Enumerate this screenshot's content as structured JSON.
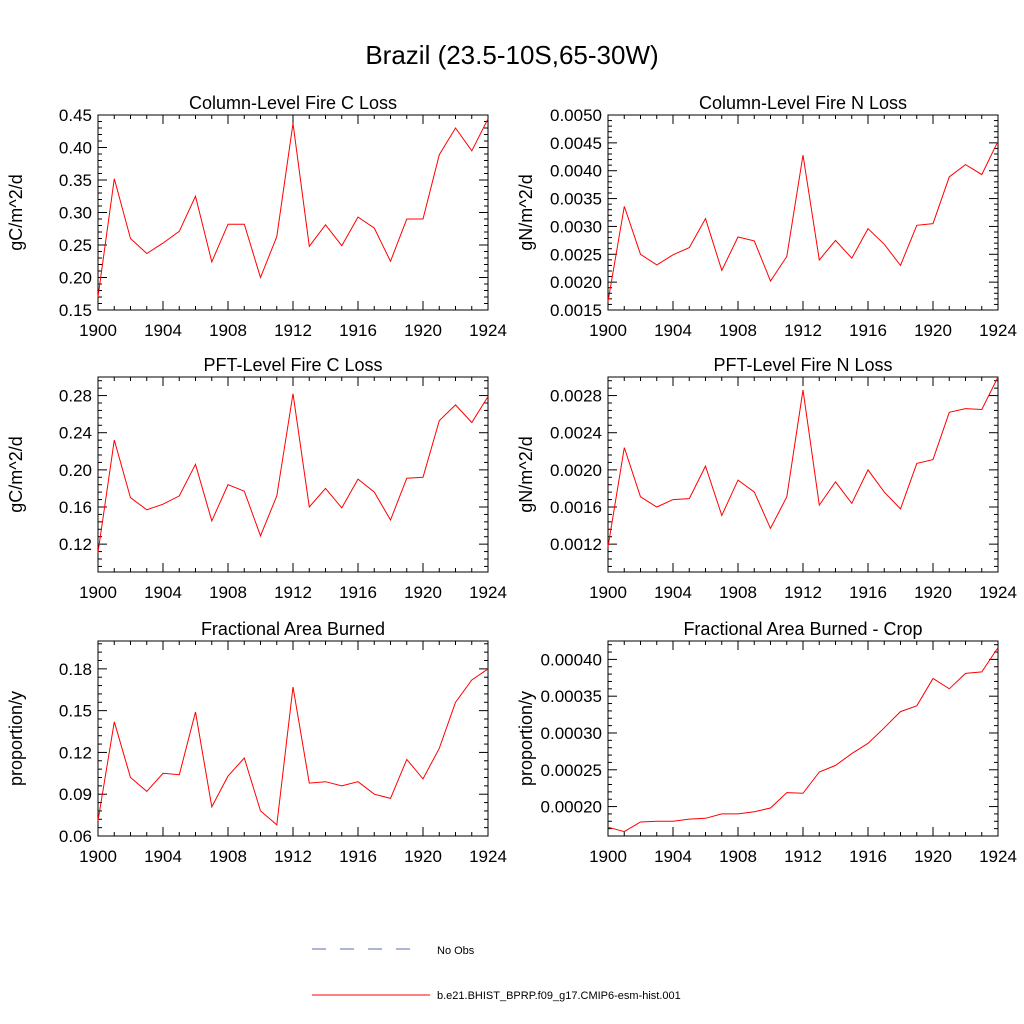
{
  "figure": {
    "title": "Brazil (23.5-10S,65-30W)"
  },
  "legend": {
    "obs_label": "No Obs",
    "obs_color": "#5a6ea8",
    "model_label": "b.e21.BHIST_BPRP.f09_g17.CMIP6-esm-hist.001",
    "model_color": "#ff0000"
  },
  "chart_data": [
    {
      "type": "line",
      "title": "Column-Level Fire C Loss",
      "xlabel": "",
      "ylabel": "gC/m^2/d",
      "xlim": [
        1900,
        1924
      ],
      "ylim": [
        0.15,
        0.45
      ],
      "xticks": [
        1900,
        1904,
        1908,
        1912,
        1916,
        1920,
        1924
      ],
      "xtick_labels": [
        "1900",
        "1904",
        "1908",
        "1912",
        "1916",
        "1920",
        "1924"
      ],
      "yticks": [
        0.15,
        0.2,
        0.25,
        0.3,
        0.35,
        0.4,
        0.45
      ],
      "ytick_labels": [
        "0.15",
        "0.20",
        "0.25",
        "0.30",
        "0.35",
        "0.40",
        "0.45"
      ],
      "series": [
        {
          "name": "b.e21.BHIST_BPRP.f09_g17.CMIP6-esm-hist.001",
          "color": "#ff0000",
          "x": [
            1900,
            1901,
            1902,
            1903,
            1904,
            1905,
            1906,
            1907,
            1908,
            1909,
            1910,
            1911,
            1912,
            1913,
            1914,
            1915,
            1916,
            1917,
            1918,
            1919,
            1920,
            1921,
            1922,
            1923,
            1924
          ],
          "values": [
            0.17,
            0.352,
            0.26,
            0.237,
            0.253,
            0.271,
            0.325,
            0.224,
            0.282,
            0.282,
            0.2,
            0.263,
            0.437,
            0.248,
            0.281,
            0.249,
            0.293,
            0.276,
            0.225,
            0.29,
            0.29,
            0.389,
            0.43,
            0.395,
            0.444
          ]
        }
      ]
    },
    {
      "type": "line",
      "title": "Column-Level Fire N Loss",
      "xlabel": "",
      "ylabel": "gN/m^2/d",
      "xlim": [
        1900,
        1924
      ],
      "ylim": [
        0.0015,
        0.005
      ],
      "xticks": [
        1900,
        1904,
        1908,
        1912,
        1916,
        1920,
        1924
      ],
      "xtick_labels": [
        "1900",
        "1904",
        "1908",
        "1912",
        "1916",
        "1920",
        "1924"
      ],
      "yticks": [
        0.0015,
        0.002,
        0.0025,
        0.003,
        0.0035,
        0.004,
        0.0045,
        0.005
      ],
      "ytick_labels": [
        "0.0015",
        "0.0020",
        "0.0025",
        "0.0030",
        "0.0035",
        "0.0040",
        "0.0045",
        "0.0050"
      ],
      "series": [
        {
          "name": "b.e21.BHIST_BPRP.f09_g17.CMIP6-esm-hist.001",
          "color": "#ff0000",
          "x": [
            1900,
            1901,
            1902,
            1903,
            1904,
            1905,
            1906,
            1907,
            1908,
            1909,
            1910,
            1911,
            1912,
            1913,
            1914,
            1915,
            1916,
            1917,
            1918,
            1919,
            1920,
            1921,
            1922,
            1923,
            1924
          ],
          "values": [
            0.00165,
            0.00336,
            0.0025,
            0.00231,
            0.00249,
            0.00262,
            0.00314,
            0.00221,
            0.00281,
            0.00274,
            0.00202,
            0.00246,
            0.00428,
            0.0024,
            0.00275,
            0.00243,
            0.00296,
            0.00268,
            0.0023,
            0.00302,
            0.00305,
            0.00389,
            0.00411,
            0.00393,
            0.00453
          ]
        }
      ]
    },
    {
      "type": "line",
      "title": "PFT-Level Fire C Loss",
      "xlabel": "",
      "ylabel": "gC/m^2/d",
      "xlim": [
        1900,
        1924
      ],
      "ylim": [
        0.09,
        0.3
      ],
      "xticks": [
        1900,
        1904,
        1908,
        1912,
        1916,
        1920,
        1924
      ],
      "xtick_labels": [
        "1900",
        "1904",
        "1908",
        "1912",
        "1916",
        "1920",
        "1924"
      ],
      "yticks": [
        0.12,
        0.16,
        0.2,
        0.24,
        0.28
      ],
      "ytick_labels": [
        "0.12",
        "0.16",
        "0.20",
        "0.24",
        "0.28"
      ],
      "series": [
        {
          "name": "b.e21.BHIST_BPRP.f09_g17.CMIP6-esm-hist.001",
          "color": "#ff0000",
          "x": [
            1900,
            1901,
            1902,
            1903,
            1904,
            1905,
            1906,
            1907,
            1908,
            1909,
            1910,
            1911,
            1912,
            1913,
            1914,
            1915,
            1916,
            1917,
            1918,
            1919,
            1920,
            1921,
            1922,
            1923,
            1924
          ],
          "values": [
            0.111,
            0.232,
            0.17,
            0.157,
            0.163,
            0.172,
            0.206,
            0.145,
            0.184,
            0.177,
            0.129,
            0.172,
            0.282,
            0.16,
            0.18,
            0.159,
            0.19,
            0.176,
            0.146,
            0.191,
            0.192,
            0.253,
            0.27,
            0.251,
            0.279
          ]
        }
      ]
    },
    {
      "type": "line",
      "title": "PFT-Level Fire N Loss",
      "xlabel": "",
      "ylabel": "gN/m^2/d",
      "xlim": [
        1900,
        1924
      ],
      "ylim": [
        0.0009,
        0.003
      ],
      "xticks": [
        1900,
        1904,
        1908,
        1912,
        1916,
        1920,
        1924
      ],
      "xtick_labels": [
        "1900",
        "1904",
        "1908",
        "1912",
        "1916",
        "1920",
        "1924"
      ],
      "yticks": [
        0.0012,
        0.0016,
        0.002,
        0.0024,
        0.0028
      ],
      "ytick_labels": [
        "0.0012",
        "0.0016",
        "0.0020",
        "0.0024",
        "0.0028"
      ],
      "series": [
        {
          "name": "b.e21.BHIST_BPRP.f09_g17.CMIP6-esm-hist.001",
          "color": "#ff0000",
          "x": [
            1900,
            1901,
            1902,
            1903,
            1904,
            1905,
            1906,
            1907,
            1908,
            1909,
            1910,
            1911,
            1912,
            1913,
            1914,
            1915,
            1916,
            1917,
            1918,
            1919,
            1920,
            1921,
            1922,
            1923,
            1924
          ],
          "values": [
            0.00117,
            0.00224,
            0.00171,
            0.0016,
            0.00168,
            0.00169,
            0.00204,
            0.00151,
            0.00189,
            0.00176,
            0.00137,
            0.00171,
            0.00286,
            0.00162,
            0.00187,
            0.00164,
            0.002,
            0.00176,
            0.00158,
            0.00207,
            0.00211,
            0.00262,
            0.00266,
            0.00265,
            0.003
          ]
        }
      ]
    },
    {
      "type": "line",
      "title": "Fractional Area Burned",
      "xlabel": "",
      "ylabel": "proportion/y",
      "xlim": [
        1900,
        1924
      ],
      "ylim": [
        0.06,
        0.2
      ],
      "xticks": [
        1900,
        1904,
        1908,
        1912,
        1916,
        1920,
        1924
      ],
      "xtick_labels": [
        "1900",
        "1904",
        "1908",
        "1912",
        "1916",
        "1920",
        "1924"
      ],
      "yticks": [
        0.06,
        0.09,
        0.12,
        0.15,
        0.18
      ],
      "ytick_labels": [
        "0.06",
        "0.09",
        "0.12",
        "0.15",
        "0.18"
      ],
      "series": [
        {
          "name": "b.e21.BHIST_BPRP.f09_g17.CMIP6-esm-hist.001",
          "color": "#ff0000",
          "x": [
            1900,
            1901,
            1902,
            1903,
            1904,
            1905,
            1906,
            1907,
            1908,
            1909,
            1910,
            1911,
            1912,
            1913,
            1914,
            1915,
            1916,
            1917,
            1918,
            1919,
            1920,
            1921,
            1922,
            1923,
            1924
          ],
          "values": [
            0.071,
            0.142,
            0.102,
            0.092,
            0.105,
            0.104,
            0.149,
            0.081,
            0.103,
            0.116,
            0.078,
            0.068,
            0.167,
            0.098,
            0.099,
            0.096,
            0.099,
            0.09,
            0.087,
            0.115,
            0.101,
            0.123,
            0.156,
            0.172,
            0.18
          ]
        }
      ]
    },
    {
      "type": "line",
      "title": "Fractional Area Burned - Crop",
      "xlabel": "",
      "ylabel": "proportion/y",
      "xlim": [
        1900,
        1924
      ],
      "ylim": [
        0.00016,
        0.000425
      ],
      "xticks": [
        1900,
        1904,
        1908,
        1912,
        1916,
        1920,
        1924
      ],
      "xtick_labels": [
        "1900",
        "1904",
        "1908",
        "1912",
        "1916",
        "1920",
        "1924"
      ],
      "yticks": [
        0.0002,
        0.00025,
        0.0003,
        0.00035,
        0.0004
      ],
      "ytick_labels": [
        "0.00020",
        "0.00025",
        "0.00030",
        "0.00035",
        "0.00040"
      ],
      "series": [
        {
          "name": "b.e21.BHIST_BPRP.f09_g17.CMIP6-esm-hist.001",
          "color": "#ff0000",
          "x": [
            1900,
            1901,
            1902,
            1903,
            1904,
            1905,
            1906,
            1907,
            1908,
            1909,
            1910,
            1911,
            1912,
            1913,
            1914,
            1915,
            1916,
            1917,
            1918,
            1919,
            1920,
            1921,
            1922,
            1923,
            1924
          ],
          "values": [
            0.000172,
            0.000166,
            0.000179,
            0.00018,
            0.00018,
            0.000183,
            0.000184,
            0.00019,
            0.00019,
            0.000193,
            0.000198,
            0.000219,
            0.000218,
            0.000247,
            0.000256,
            0.000272,
            0.000286,
            0.000307,
            0.000329,
            0.000337,
            0.000374,
            0.00036,
            0.000381,
            0.000383,
            0.000416
          ]
        }
      ]
    }
  ]
}
